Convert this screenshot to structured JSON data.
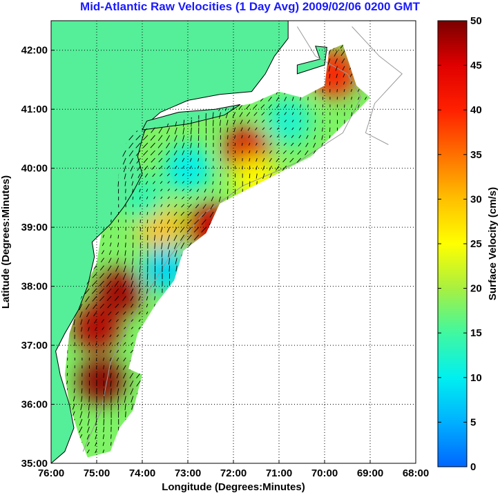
{
  "title": "Mid-Atlantic Raw Velocities (1 Day Avg) 2009/02/06 0200 GMT",
  "colors": {
    "title": "#1a1aff",
    "land": "#55ee99",
    "coast": "#000000",
    "bathymetry": "#999999",
    "grid": "#000000",
    "vectors": "#000000"
  },
  "chart_data": [
    {
      "type": "heatmap",
      "title": "Mid-Atlantic Raw Velocities (1 Day Avg) 2009/02/06 0200 GMT",
      "xlabel": "Longitude (Degrees:Minutes)",
      "ylabel": "Latitude (Degrees:Minutes)",
      "xlim": [
        -76,
        -68
      ],
      "ylim": [
        35,
        42.5
      ],
      "x_ticks": [
        -76,
        -75,
        -74,
        -73,
        -72,
        -71,
        -70,
        -69,
        -68
      ],
      "x_tick_labels": [
        "76:00",
        "75:00",
        "74:00",
        "73:00",
        "72:00",
        "71:00",
        "70:00",
        "69:00",
        "68:00"
      ],
      "y_ticks": [
        35,
        36,
        37,
        38,
        39,
        40,
        41,
        42
      ],
      "y_tick_labels": [
        "35:00",
        "36:00",
        "37:00",
        "38:00",
        "39:00",
        "40:00",
        "41:00",
        "42:00"
      ],
      "grid": true,
      "grid_style": "dotted",
      "hotspots": [
        {
          "lon": -74.5,
          "lat": 37.9,
          "speed": 48
        },
        {
          "lon": -75.0,
          "lat": 37.3,
          "speed": 47
        },
        {
          "lon": -74.9,
          "lat": 36.4,
          "speed": 49
        },
        {
          "lon": -71.7,
          "lat": 40.3,
          "speed": 45
        },
        {
          "lon": -72.5,
          "lat": 39.0,
          "speed": 46
        },
        {
          "lon": -69.8,
          "lat": 41.6,
          "speed": 40
        },
        {
          "lon": -73.6,
          "lat": 39.0,
          "speed": 30
        },
        {
          "lon": -71.5,
          "lat": 39.8,
          "speed": 25
        },
        {
          "lon": -70.8,
          "lat": 40.8,
          "speed": 12
        },
        {
          "lon": -73.0,
          "lat": 40.0,
          "speed": 10
        },
        {
          "lon": -73.5,
          "lat": 38.3,
          "speed": 8
        },
        {
          "lon": -74.0,
          "lat": 39.5,
          "speed": 14
        }
      ]
    },
    {
      "type": "bar",
      "title": "",
      "ylabel": "Surface Velocity (cm/s)",
      "ylim": [
        0,
        50
      ],
      "ticks": [
        0,
        5,
        10,
        15,
        20,
        25,
        30,
        35,
        40,
        45,
        50
      ],
      "tick_labels": [
        "0",
        "5",
        "10",
        "15",
        "20",
        "25",
        "30",
        "35",
        "40",
        "45",
        "50"
      ],
      "colormap": [
        "#0066ff",
        "#00b0ff",
        "#00f0f0",
        "#40f8a0",
        "#a8f040",
        "#ffff00",
        "#ffc000",
        "#ff7000",
        "#ff2000",
        "#e00000",
        "#7a0000"
      ]
    }
  ]
}
